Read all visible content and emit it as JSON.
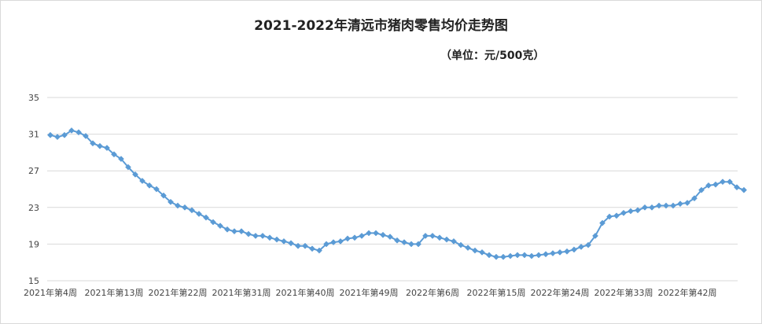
{
  "chart_data": {
    "type": "line",
    "title": "2021-2022年清远市猪肉零售均价走势图",
    "subtitle": "（单位：元/500克）",
    "xlabel": "",
    "ylabel": "",
    "ylim": [
      15,
      35
    ],
    "y_ticks": [
      "15",
      "19",
      "23",
      "27",
      "31",
      "35"
    ],
    "x_tick_labels": [
      "2021年第4周",
      "2021年第13周",
      "2021年第22周",
      "2021年第31周",
      "2021年第40周",
      "2021年第49周",
      "2022年第6周",
      "2022年第15周",
      "2022年第24周",
      "2022年第33周",
      "2022年第42周"
    ],
    "grid": true,
    "legend": "none",
    "color": "#5b9bd5",
    "series": [
      {
        "values": [
          30.9,
          30.7,
          30.9,
          31.4,
          31.2,
          30.8,
          30.0,
          29.7,
          29.5,
          28.8,
          28.3,
          27.4,
          26.6,
          25.9,
          25.4,
          25.0,
          24.3,
          23.6,
          23.2,
          23.0,
          22.7,
          22.3,
          21.9,
          21.4,
          21.0,
          20.6,
          20.4,
          20.4,
          20.1,
          19.9,
          19.9,
          19.7,
          19.5,
          19.3,
          19.1,
          18.8,
          18.8,
          18.5,
          18.3,
          19.0,
          19.2,
          19.3,
          19.6,
          19.7,
          19.9,
          20.2,
          20.2,
          20.0,
          19.8,
          19.4,
          19.2,
          19.0,
          19.0,
          19.9,
          19.9,
          19.7,
          19.5,
          19.3,
          18.9,
          18.6,
          18.3,
          18.1,
          17.8,
          17.6,
          17.6,
          17.7,
          17.8,
          17.8,
          17.7,
          17.8,
          17.9,
          18.0,
          18.1,
          18.2,
          18.4,
          18.7,
          18.9,
          19.9,
          21.3,
          22.0,
          22.1,
          22.4,
          22.6,
          22.7,
          23.0,
          23.0,
          23.2,
          23.2,
          23.2,
          23.4,
          23.5,
          24.0,
          24.9,
          25.4,
          25.5,
          25.8,
          25.8,
          25.2,
          24.9
        ]
      }
    ]
  }
}
